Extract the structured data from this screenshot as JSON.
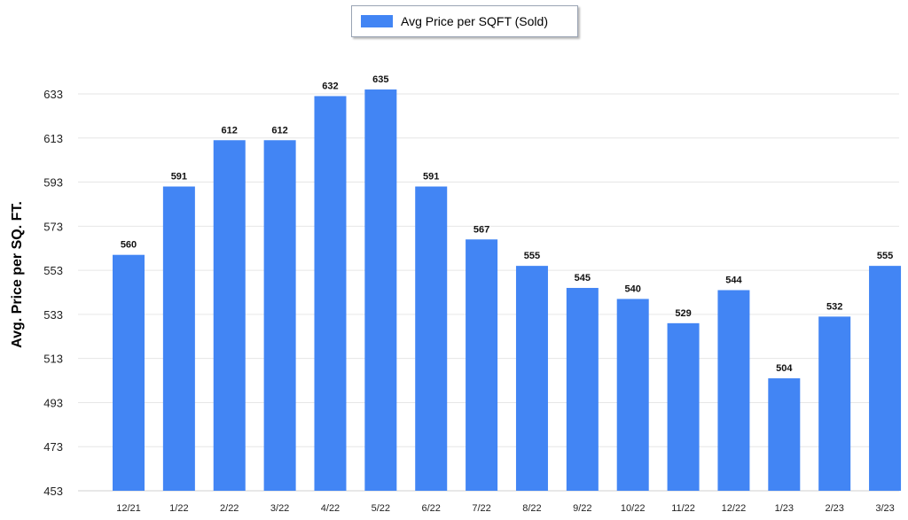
{
  "chart_data": {
    "type": "bar",
    "categories": [
      "12/21",
      "1/22",
      "2/22",
      "3/22",
      "4/22",
      "5/22",
      "6/22",
      "7/22",
      "8/22",
      "9/22",
      "10/22",
      "11/22",
      "12/22",
      "1/23",
      "2/23",
      "3/23"
    ],
    "series": [
      {
        "name": "Avg Price per SQFT (Sold)",
        "values": [
          560,
          591,
          612,
          612,
          632,
          635,
          591,
          567,
          555,
          545,
          540,
          529,
          544,
          504,
          532,
          555
        ]
      }
    ],
    "ylabel": "Avg. Price per SQ. FT.",
    "xlabel": "",
    "ylim": [
      453,
      643
    ],
    "yticks": [
      453,
      473,
      493,
      513,
      533,
      553,
      573,
      593,
      613,
      633
    ],
    "grid": true,
    "legend": "top-center",
    "bar_color": "#4285f4"
  }
}
